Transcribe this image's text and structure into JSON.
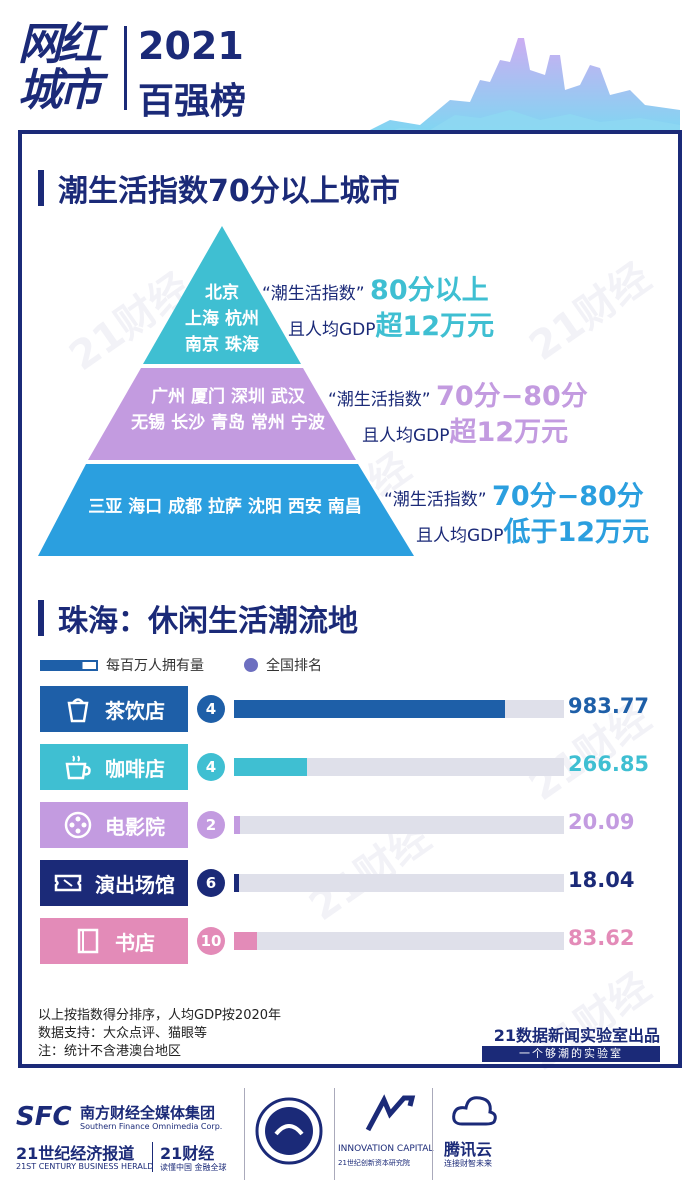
{
  "header": {
    "logo_line1": "网红",
    "logo_line2": "城市",
    "year": "2021",
    "subtitle": "百强榜"
  },
  "section1": {
    "title": "潮生活指数70分以上城市",
    "tiers": [
      {
        "cities_lines": [
          "北京",
          "上海 杭州",
          "南京 珠海"
        ],
        "label_prefix": "“潮生活指数”",
        "label_score": "80分以上",
        "label_gdp_prefix": "且人均GDP",
        "label_gdp": "超12万元",
        "color": "#3fbfd2"
      },
      {
        "cities_lines": [
          "广州 厦门 深圳 武汉",
          "无锡 长沙 青岛 常州 宁波"
        ],
        "label_prefix": "“潮生活指数”",
        "label_score": "70分−80分",
        "label_gdp_prefix": "且人均GDP",
        "label_gdp": "超12万元",
        "color": "#c39be0"
      },
      {
        "cities_lines": [
          "三亚 海口 成都 拉萨 沈阳 西安 南昌"
        ],
        "label_prefix": "“潮生活指数”",
        "label_score": "70分−80分",
        "label_gdp_prefix": "且人均GDP",
        "label_gdp": "低于12万元",
        "color": "#2b9fdf"
      }
    ]
  },
  "section2": {
    "title": "珠海：休闲生活潮流地",
    "legend_bar": "每百万人拥有量",
    "legend_dot": "全国排名"
  },
  "chart_data": {
    "type": "bar",
    "categories": [
      "茶饮店",
      "咖啡店",
      "电影院",
      "演出场馆",
      "书店"
    ],
    "values": [
      983.77,
      266.85,
      20.09,
      18.04,
      83.62
    ],
    "value_labels": [
      "983.77",
      "266.85",
      "20.09",
      "18.04",
      "83.62"
    ],
    "ranks": [
      "4",
      "4",
      "2",
      "6",
      "10"
    ],
    "icons": [
      "tea-cup-icon",
      "coffee-cup-icon",
      "film-reel-icon",
      "ticket-icon",
      "book-icon"
    ],
    "colors": [
      "#1e5fa8",
      "#3fbfd2",
      "#c39be0",
      "#1b2a78",
      "#e38bb8"
    ],
    "legend": [
      "每百万人拥有量",
      "全国排名"
    ],
    "xlim": [
      0,
      1200
    ]
  },
  "notes": {
    "line1": "以上按指数得分排序，人均GDP按2020年",
    "line2": "数据支持：大众点评、猫眼等",
    "line3": "注：统计不含港澳台地区"
  },
  "credit": {
    "main": "21数据新闻实验室出品",
    "sub": "一个够潮的实验室"
  },
  "footer": {
    "sfc": "SFC",
    "group": "南方财经全媒体集团",
    "group_en": "Southern Finance Omnimedia Corp.",
    "herald": "21世纪经济报道",
    "herald_en": "21ST CENTURY BUSINESS HERALD",
    "caijing": "21财经",
    "caijing_sub": "读懂中国 金融全球",
    "innovation": "INNOVATION CAPITAL",
    "innovation_sub": "21世纪创新资本研究院",
    "tencent": "腾讯云",
    "tencent_sub": "连接财智未来"
  },
  "watermark": "21财经"
}
